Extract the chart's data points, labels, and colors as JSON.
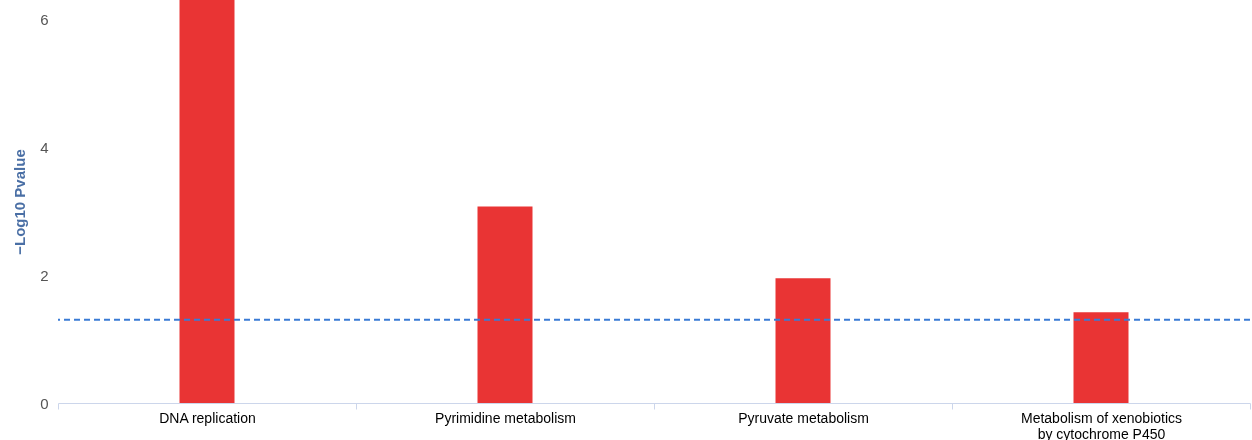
{
  "chart_data": {
    "type": "bar",
    "ylabel": "−Log10 Pvalue",
    "categories": [
      "DNA replication",
      "Pyrimidine metabolism",
      "Pyruvate metabolism",
      "Metabolism of xenobiotics\nby cytochrome P450"
    ],
    "values": [
      6.3,
      3.07,
      1.95,
      1.42
    ],
    "color": "#e93434",
    "ylim": [
      0,
      6.3
    ],
    "yticks": [
      0,
      2,
      4,
      6
    ],
    "grid": false,
    "ref_lines": [
      {
        "axis": "y",
        "value": 1.3,
        "color": "#3a7bd5",
        "line_style": "dashed"
      }
    ]
  }
}
